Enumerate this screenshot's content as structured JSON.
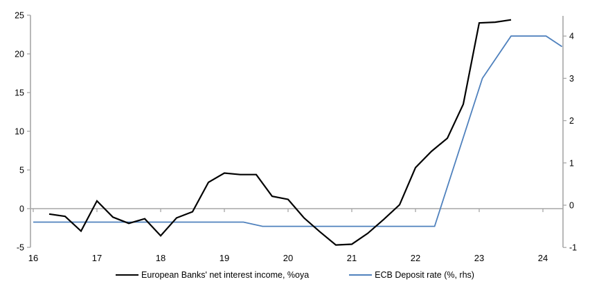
{
  "chart": {
    "background": "#ffffff",
    "axis_color": "#a6a6a6",
    "text_color": "#000000",
    "legend": [
      {
        "label": "European Banks' net interest income, %oya",
        "color": "#000000"
      },
      {
        "label": "ECB Deposit rate (%, rhs)",
        "color": "#4f81bd"
      }
    ]
  },
  "chart_data": {
    "type": "line",
    "title": "",
    "xlabel": "",
    "ylabel_left": "",
    "ylabel_right": "",
    "grid": false,
    "legend_position": "bottom",
    "x_axis": {
      "ticks": [
        16,
        17,
        18,
        19,
        20,
        21,
        22,
        23,
        24
      ],
      "range": [
        15.95,
        24.32
      ]
    },
    "left_axis": {
      "ticks": [
        -5,
        0,
        5,
        10,
        15,
        20,
        25
      ],
      "range": [
        -5,
        25
      ]
    },
    "right_axis": {
      "ticks": [
        -1,
        0,
        1,
        2,
        3,
        4
      ],
      "range": [
        -1,
        4.5
      ]
    },
    "series": [
      {
        "name": "European Banks' net interest income, %oya",
        "axis": "left",
        "color": "#000000",
        "width": 2.2,
        "x": [
          16.25,
          16.5,
          16.75,
          17.0,
          17.25,
          17.5,
          17.75,
          18.0,
          18.25,
          18.5,
          18.75,
          19.0,
          19.25,
          19.5,
          19.75,
          20.0,
          20.25,
          20.5,
          20.75,
          21.0,
          21.25,
          21.5,
          21.75,
          22.0,
          22.25,
          22.5,
          22.75,
          23.0,
          23.25,
          23.5
        ],
        "y": [
          -0.7,
          -1.0,
          -2.9,
          1.0,
          -1.1,
          -1.9,
          -1.3,
          -3.5,
          -1.2,
          -0.4,
          3.4,
          4.6,
          4.4,
          4.4,
          1.6,
          1.2,
          -1.2,
          -3.0,
          -4.7,
          -4.6,
          -3.2,
          -1.4,
          0.5,
          5.3,
          7.4,
          9.1,
          13.5,
          24.0,
          24.1,
          24.4
        ]
      },
      {
        "name": "ECB Deposit rate (%, rhs)",
        "axis": "right",
        "color": "#4f81bd",
        "width": 1.8,
        "x": [
          16.0,
          19.3,
          19.6,
          22.3,
          23.05,
          23.5,
          24.05,
          24.3
        ],
        "y": [
          -0.4,
          -0.4,
          -0.5,
          -0.5,
          3.0,
          4.0,
          4.0,
          3.75
        ]
      }
    ]
  }
}
